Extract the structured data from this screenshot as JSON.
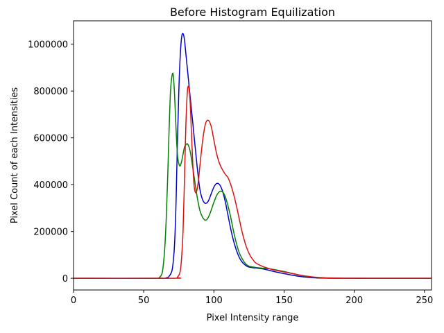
{
  "chart_data": {
    "type": "line",
    "title": "Before Histogram Equilization",
    "xlabel": "Pixel Intensity range",
    "ylabel": "Pixel Count of each Intensities",
    "xlim": [
      0,
      255
    ],
    "ylim": [
      -50000,
      1100000
    ],
    "xticks": [
      0,
      50,
      100,
      150,
      200,
      250
    ],
    "xtick_labels": [
      "0",
      "50",
      "100",
      "150",
      "200",
      "250"
    ],
    "yticks": [
      0,
      200000,
      400000,
      600000,
      800000,
      1000000
    ],
    "ytick_labels": [
      "0",
      "200000",
      "400000",
      "600000",
      "800000",
      "1000000"
    ],
    "grid": false,
    "series": [
      {
        "color": "#0000cc",
        "x": [
          0,
          60,
          66,
          68,
          70,
          71,
          72,
          73,
          74,
          75,
          76,
          77,
          78,
          79,
          80,
          81,
          82,
          84,
          86,
          88,
          90,
          92,
          94,
          96,
          98,
          100,
          102,
          104,
          106,
          108,
          110,
          112,
          114,
          116,
          118,
          120,
          122,
          124,
          126,
          128,
          130,
          135,
          140,
          145,
          150,
          155,
          160,
          165,
          170,
          175,
          180,
          190,
          200,
          220,
          240,
          255
        ],
        "y": [
          0,
          0,
          2000,
          8000,
          30000,
          70000,
          150000,
          320000,
          580000,
          800000,
          950000,
          1030000,
          1045000,
          1020000,
          960000,
          900000,
          840000,
          720000,
          600000,
          480000,
          380000,
          335000,
          320000,
          330000,
          360000,
          390000,
          405000,
          400000,
          375000,
          330000,
          270000,
          210000,
          160000,
          120000,
          90000,
          70000,
          58000,
          50000,
          47000,
          45000,
          44000,
          40000,
          33000,
          26000,
          20000,
          14000,
          9000,
          5000,
          2500,
          1200,
          500,
          100,
          0,
          0,
          0,
          0
        ]
      },
      {
        "color": "#008000",
        "x": [
          0,
          58,
          61,
          63,
          64,
          65,
          66,
          67,
          68,
          69,
          70,
          71,
          72,
          73,
          74,
          75,
          76,
          77,
          78,
          79,
          80,
          81,
          82,
          83,
          84,
          86,
          88,
          90,
          92,
          94,
          96,
          98,
          100,
          102,
          104,
          106,
          108,
          110,
          112,
          114,
          116,
          118,
          120,
          122,
          124,
          126,
          128,
          130,
          135,
          140,
          145,
          150,
          155,
          160,
          165,
          170,
          175,
          180,
          190,
          200,
          220,
          240,
          255
        ],
        "y": [
          0,
          0,
          3000,
          20000,
          60000,
          130000,
          250000,
          420000,
          620000,
          790000,
          860000,
          870000,
          780000,
          640000,
          530000,
          490000,
          480000,
          500000,
          530000,
          560000,
          570000,
          575000,
          565000,
          545000,
          510000,
          430000,
          350000,
          290000,
          260000,
          248000,
          260000,
          290000,
          325000,
          355000,
          370000,
          370000,
          350000,
          310000,
          260000,
          200000,
          150000,
          110000,
          85000,
          66000,
          55000,
          50000,
          48000,
          46000,
          43000,
          40000,
          35000,
          29000,
          22000,
          15000,
          9000,
          5000,
          2500,
          1200,
          200,
          0,
          0,
          0,
          0
        ]
      },
      {
        "color": "#dd1111",
        "x": [
          0,
          70,
          74,
          76,
          77,
          78,
          79,
          80,
          81,
          82,
          83,
          84,
          85,
          86,
          87,
          88,
          89,
          90,
          92,
          94,
          96,
          98,
          100,
          102,
          104,
          106,
          108,
          110,
          112,
          114,
          116,
          118,
          120,
          122,
          124,
          126,
          128,
          130,
          135,
          140,
          145,
          150,
          155,
          160,
          165,
          170,
          175,
          180,
          190,
          200,
          220,
          240,
          255
        ],
        "y": [
          0,
          0,
          5000,
          30000,
          90000,
          200000,
          420000,
          650000,
          790000,
          820000,
          760000,
          620000,
          480000,
          390000,
          365000,
          380000,
          420000,
          480000,
          590000,
          660000,
          675000,
          650000,
          590000,
          530000,
          490000,
          465000,
          445000,
          430000,
          400000,
          360000,
          310000,
          255000,
          200000,
          155000,
          120000,
          95000,
          78000,
          65000,
          50000,
          40000,
          33000,
          27000,
          21000,
          15000,
          10000,
          6000,
          3500,
          2000,
          800,
          300,
          0,
          0,
          0
        ]
      }
    ]
  }
}
